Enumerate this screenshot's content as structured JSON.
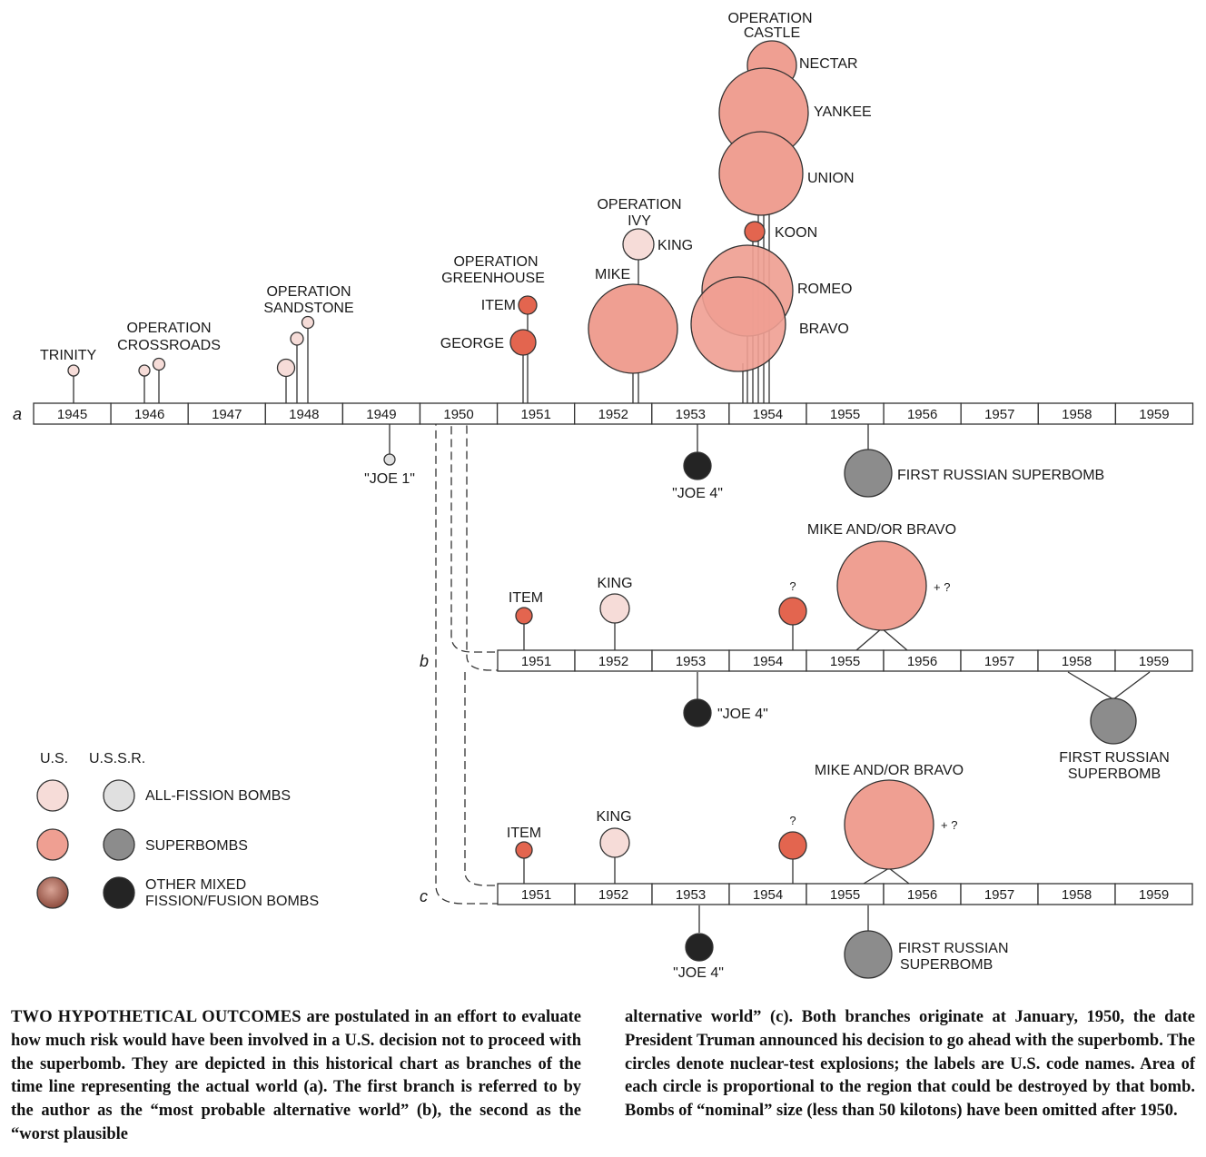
{
  "colors": {
    "us_fission": "#f6dcd8",
    "us_super": "#ef9f92",
    "us_mixed": "#a8604e",
    "us_small_super": "#e3654f",
    "ussr_fission": "#e0e0e0",
    "ussr_super": "#8c8c8c",
    "ussr_mixed": "#242424",
    "outline": "#333333"
  },
  "timelines": [
    {
      "id": "a",
      "label": "a",
      "years": [
        "1945",
        "1946",
        "1947",
        "1948",
        "1949",
        "1950",
        "1951",
        "1952",
        "1953",
        "1954",
        "1955",
        "1956",
        "1957",
        "1958",
        "1959"
      ]
    },
    {
      "id": "b",
      "label": "b",
      "years": [
        "1951",
        "1952",
        "1953",
        "1954",
        "1955",
        "1956",
        "1957",
        "1958",
        "1959"
      ]
    },
    {
      "id": "c",
      "label": "c",
      "years": [
        "1951",
        "1952",
        "1953",
        "1954",
        "1955",
        "1956",
        "1957",
        "1958",
        "1959"
      ]
    }
  ],
  "labels": {
    "trinity": "TRINITY",
    "crossroads_1": "OPERATION",
    "crossroads_2": "CROSSROADS",
    "sandstone_1": "OPERATION",
    "sandstone_2": "SANDSTONE",
    "greenhouse_1": "OPERATION",
    "greenhouse_2": "GREENHOUSE",
    "item": "ITEM",
    "george": "GEORGE",
    "ivy_1": "OPERATION",
    "ivy_2": "IVY",
    "king": "KING",
    "mike": "MIKE",
    "castle_1": "OPERATION",
    "castle_2": "CASTLE",
    "nectar": "NECTAR",
    "yankee": "YANKEE",
    "union": "UNION",
    "koon": "KOON",
    "romeo": "ROMEO",
    "bravo": "BRAVO",
    "joe1": "\"JOE 1\"",
    "joe4": "\"JOE 4\"",
    "first_russian_superbomb": "FIRST RUSSIAN SUPERBOMB",
    "first_russian": "FIRST RUSSIAN",
    "superbomb": "SUPERBOMB",
    "mike_and_or_bravo": "MIKE AND/OR BRAVO",
    "question": "?",
    "plus_question": "+ ?"
  },
  "legend": {
    "us_header": "U.S.",
    "ussr_header": "U.S.S.R.",
    "all_fission": "ALL-FISSION BOMBS",
    "superbombs": "SUPERBOMBS",
    "other_mixed_1": "OTHER MIXED",
    "other_mixed_2": "FISSION/FUSION BOMBS"
  },
  "caption": {
    "lead": "TWO HYPOTHETICAL OUTCOMES",
    "left": " are postulated in an effort to evaluate how much risk would have been involved in a U.S. decision not to proceed with the superbomb. They are depicted in this historical chart as branches of the time line representing the actual world (a). The first branch is referred to by the author as the “most probable alternative world” (b), the second as the “worst plausible",
    "right": "alternative world” (c). Both branches originate at January, 1950, the date President Truman announced his decision to go ahead with the superbomb. The circles denote nuclear-test explosions; the labels are U.S. code names. Area of each circle is proportional to the region that could be destroyed by that bomb. Bombs of “nominal” size (less than 50 kilotons) have been omitted after 1950."
  }
}
